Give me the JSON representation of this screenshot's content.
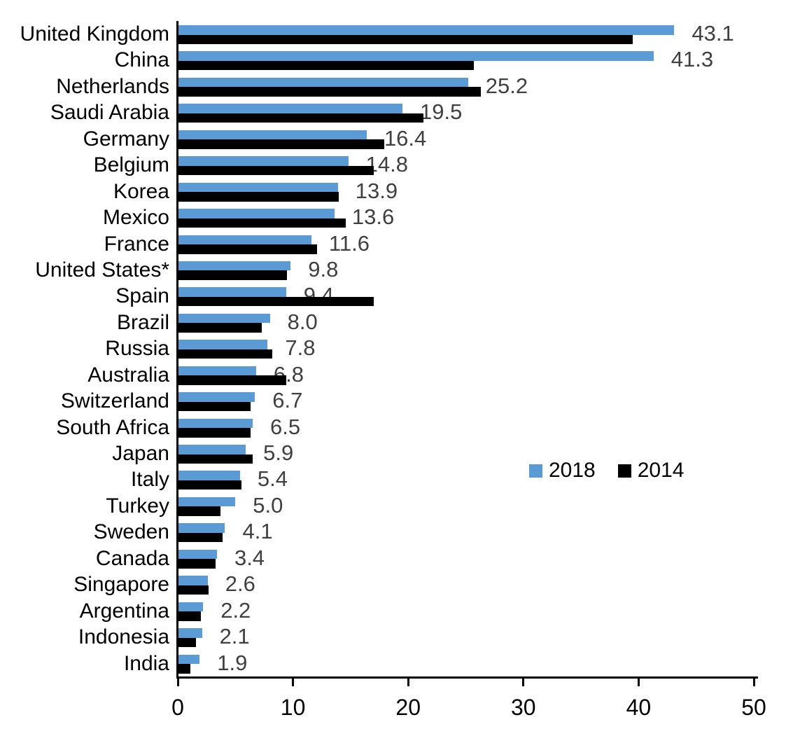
{
  "chart_data": {
    "type": "bar",
    "orientation": "horizontal",
    "title": "",
    "xlabel": "",
    "ylabel": "",
    "xlim": [
      0,
      50
    ],
    "x_ticks": [
      "0",
      "10",
      "20",
      "30",
      "40",
      "50"
    ],
    "grid": false,
    "categories": [
      "United Kingdom",
      "China",
      "Netherlands",
      "Saudi Arabia",
      "Germany",
      "Belgium",
      "Korea",
      "Mexico",
      "France",
      "United States*",
      "Spain",
      "Brazil",
      "Russia",
      "Australia",
      "Switzerland",
      "South Africa",
      "Japan",
      "Italy",
      "Turkey",
      "Sweden",
      "Canada",
      "Singapore",
      "Argentina",
      "Indonesia",
      "India"
    ],
    "series": [
      {
        "name": "2018",
        "color": "#5B9BD5",
        "values": [
          43.1,
          41.3,
          25.2,
          19.5,
          16.4,
          14.8,
          13.9,
          13.6,
          11.6,
          9.8,
          9.4,
          8.0,
          7.8,
          6.8,
          6.7,
          6.5,
          5.9,
          5.4,
          5.0,
          4.1,
          3.4,
          2.6,
          2.2,
          2.1,
          1.9
        ]
      },
      {
        "name": "2014",
        "color": "#000000",
        "values": [
          39.5,
          25.7,
          26.3,
          21.3,
          17.9,
          17.0,
          14.0,
          14.6,
          12.1,
          9.5,
          17.0,
          7.3,
          8.2,
          9.4,
          6.3,
          6.3,
          6.5,
          5.5,
          3.7,
          3.9,
          3.3,
          2.7,
          2.0,
          1.6,
          1.1
        ]
      }
    ],
    "data_labels": {
      "series": "2018",
      "color": "#404040",
      "values": [
        "43.1",
        "41.3",
        "25.2",
        "19.5",
        "16.4",
        "14.8",
        "13.9",
        "13.6",
        "11.6",
        "9.8",
        "9.4",
        "8.0",
        "7.8",
        "6.8",
        "6.7",
        "6.5",
        "5.9",
        "5.4",
        "5.0",
        "4.1",
        "3.4",
        "2.6",
        "2.2",
        "2.1",
        "1.9"
      ]
    },
    "legend": {
      "position": "middle-right",
      "entries": [
        {
          "label": "2018",
          "color": "#5B9BD5"
        },
        {
          "label": "2014",
          "color": "#000000"
        }
      ]
    },
    "axis_color": "#000000",
    "background_color": "#ffffff"
  }
}
